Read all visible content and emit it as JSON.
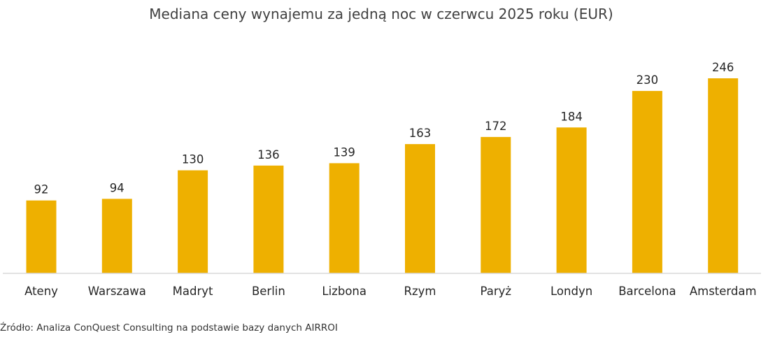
{
  "chart_data": {
    "type": "bar",
    "title": "Mediana ceny wynajemu za jedną noc w czerwcu 2025 roku (EUR)",
    "categories": [
      "Ateny",
      "Warszawa",
      "Madryt",
      "Berlin",
      "Lizbona",
      "Rzym",
      "Paryż",
      "Londyn",
      "Barcelona",
      "Amsterdam"
    ],
    "values": [
      92,
      94,
      130,
      136,
      139,
      163,
      172,
      184,
      230,
      246
    ],
    "ylim": [
      0,
      246
    ],
    "data_labels": true,
    "grid": false,
    "bar_color": "#EEB000",
    "baseline_color": "#D9D9D9"
  },
  "source": "Źródło: Analiza ConQuest Consulting na podstawie bazy danych AIRROI"
}
